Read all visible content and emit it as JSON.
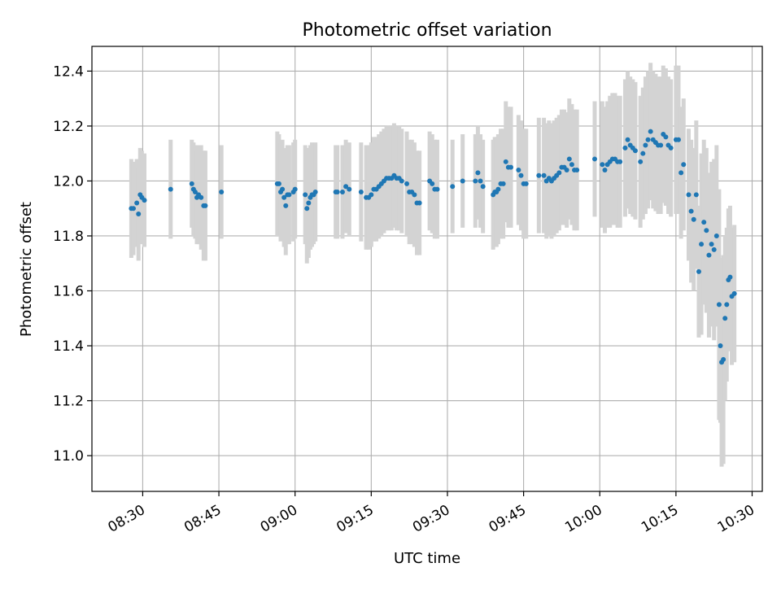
{
  "chart_data": {
    "type": "scatter",
    "title": "Photometric offset variation",
    "xlabel": "UTC time",
    "ylabel": "Photometric offset",
    "xlim": [
      "08:20",
      "10:32"
    ],
    "ylim": [
      10.87,
      12.49
    ],
    "x_ticks": [
      "08:30",
      "08:45",
      "09:00",
      "09:15",
      "09:30",
      "09:45",
      "10:00",
      "10:15",
      "10:30"
    ],
    "y_ticks": [
      "11.0",
      "11.2",
      "11.4",
      "11.6",
      "11.8",
      "12.0",
      "12.2",
      "12.4"
    ],
    "grid": true,
    "error_bars": true,
    "colors": {
      "points": "#1f77b4",
      "error_bars": "#d3d3d3",
      "grid": "#b0b0b0"
    },
    "points": [
      {
        "t": "08:27:45",
        "y": 11.9,
        "err": 0.18
      },
      {
        "t": "08:28:10",
        "y": 11.9,
        "err": 0.17
      },
      {
        "t": "08:28:50",
        "y": 11.92,
        "err": 0.16
      },
      {
        "t": "08:29:10",
        "y": 11.88,
        "err": 0.17
      },
      {
        "t": "08:29:30",
        "y": 11.95,
        "err": 0.17
      },
      {
        "t": "08:29:50",
        "y": 11.94,
        "err": 0.17
      },
      {
        "t": "08:30:20",
        "y": 11.93,
        "err": 0.17
      },
      {
        "t": "08:35:30",
        "y": 11.97,
        "err": 0.18
      },
      {
        "t": "08:39:40",
        "y": 11.99,
        "err": 0.16
      },
      {
        "t": "08:40:00",
        "y": 11.97,
        "err": 0.17
      },
      {
        "t": "08:40:20",
        "y": 11.96,
        "err": 0.17
      },
      {
        "t": "08:40:40",
        "y": 11.94,
        "err": 0.17
      },
      {
        "t": "08:41:00",
        "y": 11.95,
        "err": 0.18
      },
      {
        "t": "08:41:30",
        "y": 11.94,
        "err": 0.19
      },
      {
        "t": "08:42:00",
        "y": 11.91,
        "err": 0.2
      },
      {
        "t": "08:42:20",
        "y": 11.91,
        "err": 0.2
      },
      {
        "t": "08:45:30",
        "y": 11.96,
        "err": 0.17
      },
      {
        "t": "08:56:30",
        "y": 11.99,
        "err": 0.19
      },
      {
        "t": "08:56:50",
        "y": 11.99,
        "err": 0.18
      },
      {
        "t": "08:57:10",
        "y": 11.96,
        "err": 0.18
      },
      {
        "t": "08:57:30",
        "y": 11.97,
        "err": 0.18
      },
      {
        "t": "08:57:50",
        "y": 11.94,
        "err": 0.18
      },
      {
        "t": "08:58:10",
        "y": 11.91,
        "err": 0.18
      },
      {
        "t": "08:58:30",
        "y": 11.95,
        "err": 0.18
      },
      {
        "t": "08:58:50",
        "y": 11.95,
        "err": 0.18
      },
      {
        "t": "08:59:40",
        "y": 11.96,
        "err": 0.18
      },
      {
        "t": "09:00:00",
        "y": 11.97,
        "err": 0.18
      },
      {
        "t": "09:02:00",
        "y": 11.95,
        "err": 0.18
      },
      {
        "t": "09:02:20",
        "y": 11.9,
        "err": 0.2
      },
      {
        "t": "09:02:40",
        "y": 11.92,
        "err": 0.2
      },
      {
        "t": "09:03:00",
        "y": 11.94,
        "err": 0.19
      },
      {
        "t": "09:03:20",
        "y": 11.95,
        "err": 0.19
      },
      {
        "t": "09:03:40",
        "y": 11.95,
        "err": 0.18
      },
      {
        "t": "09:04:00",
        "y": 11.96,
        "err": 0.18
      },
      {
        "t": "09:08:00",
        "y": 11.96,
        "err": 0.17
      },
      {
        "t": "09:08:20",
        "y": 11.96,
        "err": 0.17
      },
      {
        "t": "09:09:20",
        "y": 11.96,
        "err": 0.17
      },
      {
        "t": "09:10:00",
        "y": 11.98,
        "err": 0.17
      },
      {
        "t": "09:10:40",
        "y": 11.97,
        "err": 0.17
      },
      {
        "t": "09:13:00",
        "y": 11.96,
        "err": 0.18
      },
      {
        "t": "09:14:00",
        "y": 11.94,
        "err": 0.19
      },
      {
        "t": "09:14:30",
        "y": 11.94,
        "err": 0.19
      },
      {
        "t": "09:15:00",
        "y": 11.95,
        "err": 0.19
      },
      {
        "t": "09:15:30",
        "y": 11.97,
        "err": 0.19
      },
      {
        "t": "09:16:00",
        "y": 11.97,
        "err": 0.19
      },
      {
        "t": "09:16:30",
        "y": 11.98,
        "err": 0.19
      },
      {
        "t": "09:17:00",
        "y": 11.99,
        "err": 0.19
      },
      {
        "t": "09:17:30",
        "y": 12.0,
        "err": 0.19
      },
      {
        "t": "09:18:00",
        "y": 12.01,
        "err": 0.19
      },
      {
        "t": "09:18:30",
        "y": 12.01,
        "err": 0.19
      },
      {
        "t": "09:19:00",
        "y": 12.01,
        "err": 0.19
      },
      {
        "t": "09:19:30",
        "y": 12.02,
        "err": 0.19
      },
      {
        "t": "09:20:00",
        "y": 12.01,
        "err": 0.19
      },
      {
        "t": "09:20:30",
        "y": 12.01,
        "err": 0.19
      },
      {
        "t": "09:21:00",
        "y": 12.0,
        "err": 0.19
      },
      {
        "t": "09:22:00",
        "y": 11.99,
        "err": 0.19
      },
      {
        "t": "09:22:30",
        "y": 11.96,
        "err": 0.19
      },
      {
        "t": "09:23:00",
        "y": 11.96,
        "err": 0.19
      },
      {
        "t": "09:23:30",
        "y": 11.95,
        "err": 0.19
      },
      {
        "t": "09:24:00",
        "y": 11.92,
        "err": 0.19
      },
      {
        "t": "09:24:30",
        "y": 11.92,
        "err": 0.19
      },
      {
        "t": "09:26:30",
        "y": 12.0,
        "err": 0.18
      },
      {
        "t": "09:27:00",
        "y": 11.99,
        "err": 0.18
      },
      {
        "t": "09:27:30",
        "y": 11.97,
        "err": 0.18
      },
      {
        "t": "09:28:00",
        "y": 11.97,
        "err": 0.18
      },
      {
        "t": "09:31:00",
        "y": 11.98,
        "err": 0.17
      },
      {
        "t": "09:33:00",
        "y": 12.0,
        "err": 0.17
      },
      {
        "t": "09:35:30",
        "y": 12.0,
        "err": 0.17
      },
      {
        "t": "09:36:00",
        "y": 12.03,
        "err": 0.17
      },
      {
        "t": "09:36:30",
        "y": 12.0,
        "err": 0.17
      },
      {
        "t": "09:37:00",
        "y": 11.98,
        "err": 0.17
      },
      {
        "t": "09:39:00",
        "y": 11.95,
        "err": 0.2
      },
      {
        "t": "09:39:20",
        "y": 11.96,
        "err": 0.2
      },
      {
        "t": "09:39:40",
        "y": 11.96,
        "err": 0.2
      },
      {
        "t": "09:40:00",
        "y": 11.97,
        "err": 0.2
      },
      {
        "t": "09:40:30",
        "y": 11.99,
        "err": 0.2
      },
      {
        "t": "09:41:00",
        "y": 11.99,
        "err": 0.2
      },
      {
        "t": "09:41:30",
        "y": 12.07,
        "err": 0.22
      },
      {
        "t": "09:42:00",
        "y": 12.05,
        "err": 0.22
      },
      {
        "t": "09:42:30",
        "y": 12.05,
        "err": 0.22
      },
      {
        "t": "09:44:00",
        "y": 12.04,
        "err": 0.2
      },
      {
        "t": "09:44:30",
        "y": 12.02,
        "err": 0.2
      },
      {
        "t": "09:45:00",
        "y": 11.99,
        "err": 0.2
      },
      {
        "t": "09:45:30",
        "y": 11.99,
        "err": 0.2
      },
      {
        "t": "09:48:00",
        "y": 12.02,
        "err": 0.21
      },
      {
        "t": "09:49:00",
        "y": 12.02,
        "err": 0.21
      },
      {
        "t": "09:49:30",
        "y": 12.0,
        "err": 0.21
      },
      {
        "t": "09:50:00",
        "y": 12.01,
        "err": 0.21
      },
      {
        "t": "09:50:30",
        "y": 12.0,
        "err": 0.21
      },
      {
        "t": "09:51:00",
        "y": 12.01,
        "err": 0.21
      },
      {
        "t": "09:51:30",
        "y": 12.02,
        "err": 0.21
      },
      {
        "t": "09:52:00",
        "y": 12.03,
        "err": 0.21
      },
      {
        "t": "09:52:30",
        "y": 12.05,
        "err": 0.21
      },
      {
        "t": "09:53:00",
        "y": 12.05,
        "err": 0.21
      },
      {
        "t": "09:53:30",
        "y": 12.04,
        "err": 0.21
      },
      {
        "t": "09:54:00",
        "y": 12.08,
        "err": 0.22
      },
      {
        "t": "09:54:30",
        "y": 12.06,
        "err": 0.22
      },
      {
        "t": "09:55:00",
        "y": 12.04,
        "err": 0.22
      },
      {
        "t": "09:55:30",
        "y": 12.04,
        "err": 0.22
      },
      {
        "t": "09:59:00",
        "y": 12.08,
        "err": 0.21
      },
      {
        "t": "10:00:30",
        "y": 12.06,
        "err": 0.23
      },
      {
        "t": "10:01:00",
        "y": 12.04,
        "err": 0.23
      },
      {
        "t": "10:01:30",
        "y": 12.06,
        "err": 0.23
      },
      {
        "t": "10:02:00",
        "y": 12.07,
        "err": 0.24
      },
      {
        "t": "10:02:30",
        "y": 12.08,
        "err": 0.24
      },
      {
        "t": "10:03:00",
        "y": 12.08,
        "err": 0.24
      },
      {
        "t": "10:03:30",
        "y": 12.07,
        "err": 0.24
      },
      {
        "t": "10:04:00",
        "y": 12.07,
        "err": 0.24
      },
      {
        "t": "10:05:00",
        "y": 12.12,
        "err": 0.25
      },
      {
        "t": "10:05:30",
        "y": 12.15,
        "err": 0.25
      },
      {
        "t": "10:06:00",
        "y": 12.13,
        "err": 0.25
      },
      {
        "t": "10:06:30",
        "y": 12.12,
        "err": 0.25
      },
      {
        "t": "10:07:00",
        "y": 12.11,
        "err": 0.25
      },
      {
        "t": "10:08:00",
        "y": 12.07,
        "err": 0.24
      },
      {
        "t": "10:08:30",
        "y": 12.1,
        "err": 0.24
      },
      {
        "t": "10:09:00",
        "y": 12.13,
        "err": 0.25
      },
      {
        "t": "10:09:30",
        "y": 12.15,
        "err": 0.25
      },
      {
        "t": "10:10:00",
        "y": 12.18,
        "err": 0.25
      },
      {
        "t": "10:10:30",
        "y": 12.15,
        "err": 0.25
      },
      {
        "t": "10:11:00",
        "y": 12.14,
        "err": 0.25
      },
      {
        "t": "10:11:30",
        "y": 12.13,
        "err": 0.25
      },
      {
        "t": "10:12:00",
        "y": 12.13,
        "err": 0.25
      },
      {
        "t": "10:12:30",
        "y": 12.17,
        "err": 0.25
      },
      {
        "t": "10:13:00",
        "y": 12.16,
        "err": 0.25
      },
      {
        "t": "10:13:30",
        "y": 12.13,
        "err": 0.25
      },
      {
        "t": "10:14:00",
        "y": 12.12,
        "err": 0.25
      },
      {
        "t": "10:15:00",
        "y": 12.15,
        "err": 0.27
      },
      {
        "t": "10:15:30",
        "y": 12.15,
        "err": 0.27
      },
      {
        "t": "10:16:00",
        "y": 12.03,
        "err": 0.24
      },
      {
        "t": "10:16:30",
        "y": 12.06,
        "err": 0.24
      },
      {
        "t": "10:17:30",
        "y": 11.95,
        "err": 0.24
      },
      {
        "t": "10:18:00",
        "y": 11.89,
        "err": 0.26
      },
      {
        "t": "10:18:30",
        "y": 11.86,
        "err": 0.26
      },
      {
        "t": "10:19:00",
        "y": 11.95,
        "err": 0.27
      },
      {
        "t": "10:19:30",
        "y": 11.67,
        "err": 0.24
      },
      {
        "t": "10:20:00",
        "y": 11.77,
        "err": 0.33
      },
      {
        "t": "10:20:30",
        "y": 11.85,
        "err": 0.3
      },
      {
        "t": "10:21:00",
        "y": 11.82,
        "err": 0.3
      },
      {
        "t": "10:21:30",
        "y": 11.73,
        "err": 0.3
      },
      {
        "t": "10:22:00",
        "y": 11.77,
        "err": 0.3
      },
      {
        "t": "10:22:30",
        "y": 11.75,
        "err": 0.33
      },
      {
        "t": "10:23:00",
        "y": 11.8,
        "err": 0.33
      },
      {
        "t": "10:23:30",
        "y": 11.55,
        "err": 0.42
      },
      {
        "t": "10:23:45",
        "y": 11.4,
        "err": 0.28
      },
      {
        "t": "10:24:00",
        "y": 11.34,
        "err": 0.38
      },
      {
        "t": "10:24:20",
        "y": 11.35,
        "err": 0.38
      },
      {
        "t": "10:24:40",
        "y": 11.5,
        "err": 0.3
      },
      {
        "t": "10:25:00",
        "y": 11.55,
        "err": 0.28
      },
      {
        "t": "10:25:20",
        "y": 11.64,
        "err": 0.26
      },
      {
        "t": "10:25:40",
        "y": 11.65,
        "err": 0.26
      },
      {
        "t": "10:26:00",
        "y": 11.58,
        "err": 0.25
      },
      {
        "t": "10:26:30",
        "y": 11.59,
        "err": 0.25
      }
    ]
  }
}
